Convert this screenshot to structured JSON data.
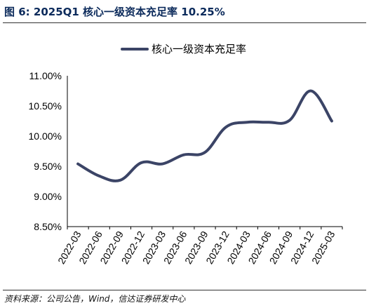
{
  "figure": {
    "title": "图 6:  2025Q1 核心一级资本充足率 10.25%",
    "source": "资料来源：公司公告，Wind，信达证券研发中心"
  },
  "colors": {
    "line": "#3b4466",
    "axis": "#000000",
    "title": "#0b2a5b"
  },
  "chart_data": {
    "type": "line",
    "title": "",
    "xlabel": "",
    "ylabel": "",
    "grid": false,
    "legend_position": "top-center",
    "categories": [
      "2022-03",
      "2022-06",
      "2022-09",
      "2022-12",
      "2023-03",
      "2023-06",
      "2023-09",
      "2023-12",
      "2024-03",
      "2024-06",
      "2024-09",
      "2024-12",
      "2025-03"
    ],
    "series": [
      {
        "name": "核心一级资本充足率",
        "values": [
          9.54,
          9.34,
          9.27,
          9.56,
          9.54,
          9.69,
          9.73,
          10.15,
          10.23,
          10.23,
          10.26,
          10.75,
          10.25
        ]
      }
    ],
    "ylim": [
      8.5,
      11.0
    ],
    "yticks": [
      "8.50%",
      "9.00%",
      "9.50%",
      "10.00%",
      "10.50%",
      "11.00%"
    ]
  }
}
